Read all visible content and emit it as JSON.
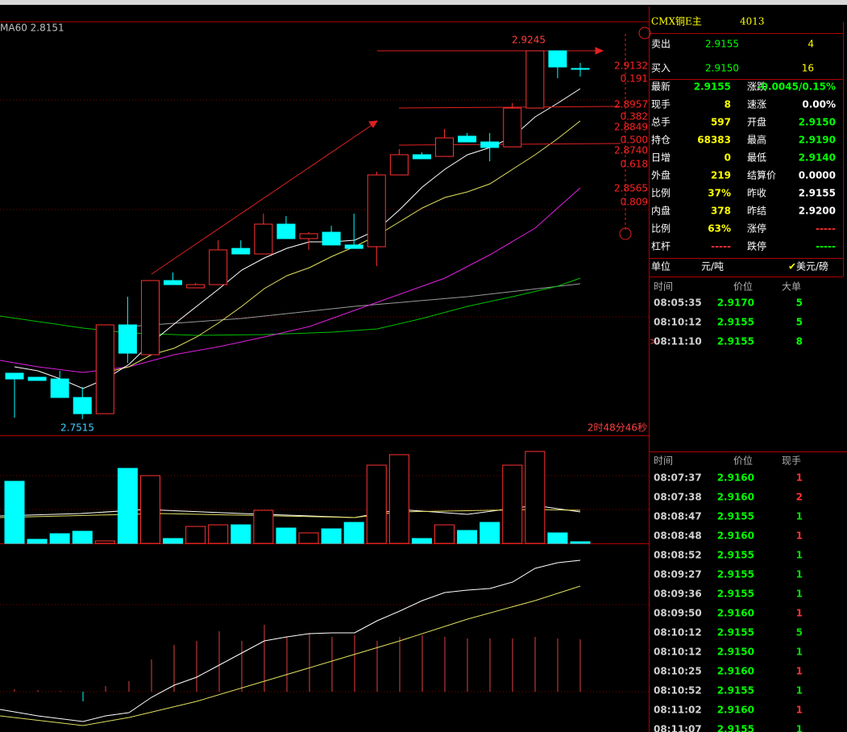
{
  "chart": {
    "indicator_label": "MA60 2.8151",
    "high_label": "2.9245",
    "low_label": "2.7515",
    "countdown": "2时48分46秒",
    "fib": [
      {
        "price": "2.9132",
        "ratio": "0.191"
      },
      {
        "price": "2.8957",
        "ratio": "0.382"
      },
      {
        "price": "2.8849",
        "ratio": "0.500"
      },
      {
        "price": "2.8740",
        "ratio": "0.618"
      },
      {
        "price": "2.8565",
        "ratio": "0.809"
      }
    ],
    "candles": [
      [
        2.7731,
        2.7731,
        2.7522,
        2.7704
      ],
      [
        2.7712,
        2.7712,
        2.7697,
        2.7697
      ],
      [
        2.7704,
        2.7742,
        2.7617,
        2.7617
      ],
      [
        2.7617,
        2.7666,
        2.7515,
        2.7541
      ],
      [
        2.7541,
        2.7958,
        2.7541,
        2.7958
      ],
      [
        2.7958,
        2.809,
        2.778,
        2.7825
      ],
      [
        2.7818,
        2.8166,
        2.7818,
        2.8166
      ],
      [
        2.8166,
        2.8204,
        2.8147,
        2.8147
      ],
      [
        2.8132,
        2.8155,
        2.8132,
        2.8147
      ],
      [
        2.8147,
        2.8355,
        2.8147,
        2.831
      ],
      [
        2.8317,
        2.8355,
        2.8291,
        2.8291
      ],
      [
        2.8291,
        2.848,
        2.8291,
        2.8431
      ],
      [
        2.8431,
        2.8469,
        2.8363,
        2.8363
      ],
      [
        2.8363,
        2.8393,
        2.831,
        2.8386
      ],
      [
        2.8393,
        2.8423,
        2.8333,
        2.8333
      ],
      [
        2.8333,
        2.848,
        2.8317,
        2.8317
      ],
      [
        2.8325,
        2.8677,
        2.8234,
        2.8662
      ],
      [
        2.8662,
        2.8783,
        2.8662,
        2.8757
      ],
      [
        2.8757,
        2.8768,
        2.8738,
        2.8738
      ],
      [
        2.8749,
        2.8878,
        2.8749,
        2.8836
      ],
      [
        2.8844,
        2.8859,
        2.8817,
        2.8817
      ],
      [
        2.8817,
        2.8859,
        2.8726,
        2.8791
      ],
      [
        2.8794,
        2.9,
        2.8794,
        2.8976
      ],
      [
        2.8976,
        2.9245,
        2.8976,
        2.9245
      ],
      [
        2.9245,
        2.9245,
        2.9116,
        2.9169
      ],
      [
        2.9162,
        2.9188,
        2.9124,
        2.9158
      ]
    ],
    "volumes": [
      77,
      5,
      12,
      15,
      3,
      93,
      84,
      6,
      21,
      23,
      23,
      41,
      19,
      13,
      18,
      26,
      97,
      110,
      6,
      23,
      16,
      26,
      97,
      114,
      13,
      2
    ]
  },
  "quote": {
    "name": "CMX铜E主",
    "code": "4013",
    "sell": {
      "label": "卖出",
      "price": "2.9155",
      "qty": "4"
    },
    "buy": {
      "label": "买入",
      "price": "2.9150",
      "qty": "16"
    },
    "stats": [
      [
        "最新",
        "2.9155",
        "涨跌",
        "-0.0045/0.15%"
      ],
      [
        "现手",
        "8",
        "速涨",
        "0.00%"
      ],
      [
        "总手",
        "597",
        "开盘",
        "2.9150"
      ],
      [
        "持仓",
        "68383",
        "最高",
        "2.9190"
      ],
      [
        "日增",
        "0",
        "最低",
        "2.9140"
      ],
      [
        "外盘",
        "219",
        "结算价",
        "0.0000"
      ],
      [
        "比例",
        "37%",
        "昨收",
        "2.9155"
      ],
      [
        "内盘",
        "378",
        "昨结",
        "2.9200"
      ],
      [
        "比例",
        "63%",
        "涨停",
        "-----"
      ],
      [
        "杠杆",
        "-----",
        "跌停",
        "-----"
      ]
    ],
    "unit": {
      "label": "单位",
      "rmb": "元/吨",
      "usd": "美元/磅"
    },
    "big_orders": {
      "header": [
        "时间",
        "价位",
        "大单"
      ],
      "rows": [
        [
          "08:05:35",
          "2.9170",
          "5"
        ],
        [
          "08:10:12",
          "2.9155",
          "5"
        ],
        [
          "08:11:10",
          "2.9155",
          "8"
        ]
      ]
    },
    "ticks": {
      "header": [
        "时间",
        "价位",
        "现手"
      ],
      "rows": [
        [
          "08:07:37",
          "2.9160",
          "1",
          "#ff3232"
        ],
        [
          "08:07:38",
          "2.9160",
          "2",
          "#ff3232"
        ],
        [
          "08:08:47",
          "2.9155",
          "1",
          "#00e000"
        ],
        [
          "08:08:48",
          "2.9160",
          "1",
          "#ff3232"
        ],
        [
          "08:08:52",
          "2.9155",
          "1",
          "#00e000"
        ],
        [
          "08:09:27",
          "2.9155",
          "1",
          "#00e000"
        ],
        [
          "08:09:36",
          "2.9155",
          "1",
          "#00e000"
        ],
        [
          "08:09:50",
          "2.9160",
          "1",
          "#ff3232"
        ],
        [
          "08:10:12",
          "2.9155",
          "5",
          "#00e000"
        ],
        [
          "08:10:12",
          "2.9150",
          "1",
          "#00e000"
        ],
        [
          "08:10:25",
          "2.9160",
          "1",
          "#ff3232"
        ],
        [
          "08:10:52",
          "2.9155",
          "1",
          "#00e000"
        ],
        [
          "08:11:02",
          "2.9160",
          "1",
          "#ff3232"
        ],
        [
          "08:11:07",
          "2.9155",
          "1",
          "#00e000"
        ]
      ]
    }
  }
}
